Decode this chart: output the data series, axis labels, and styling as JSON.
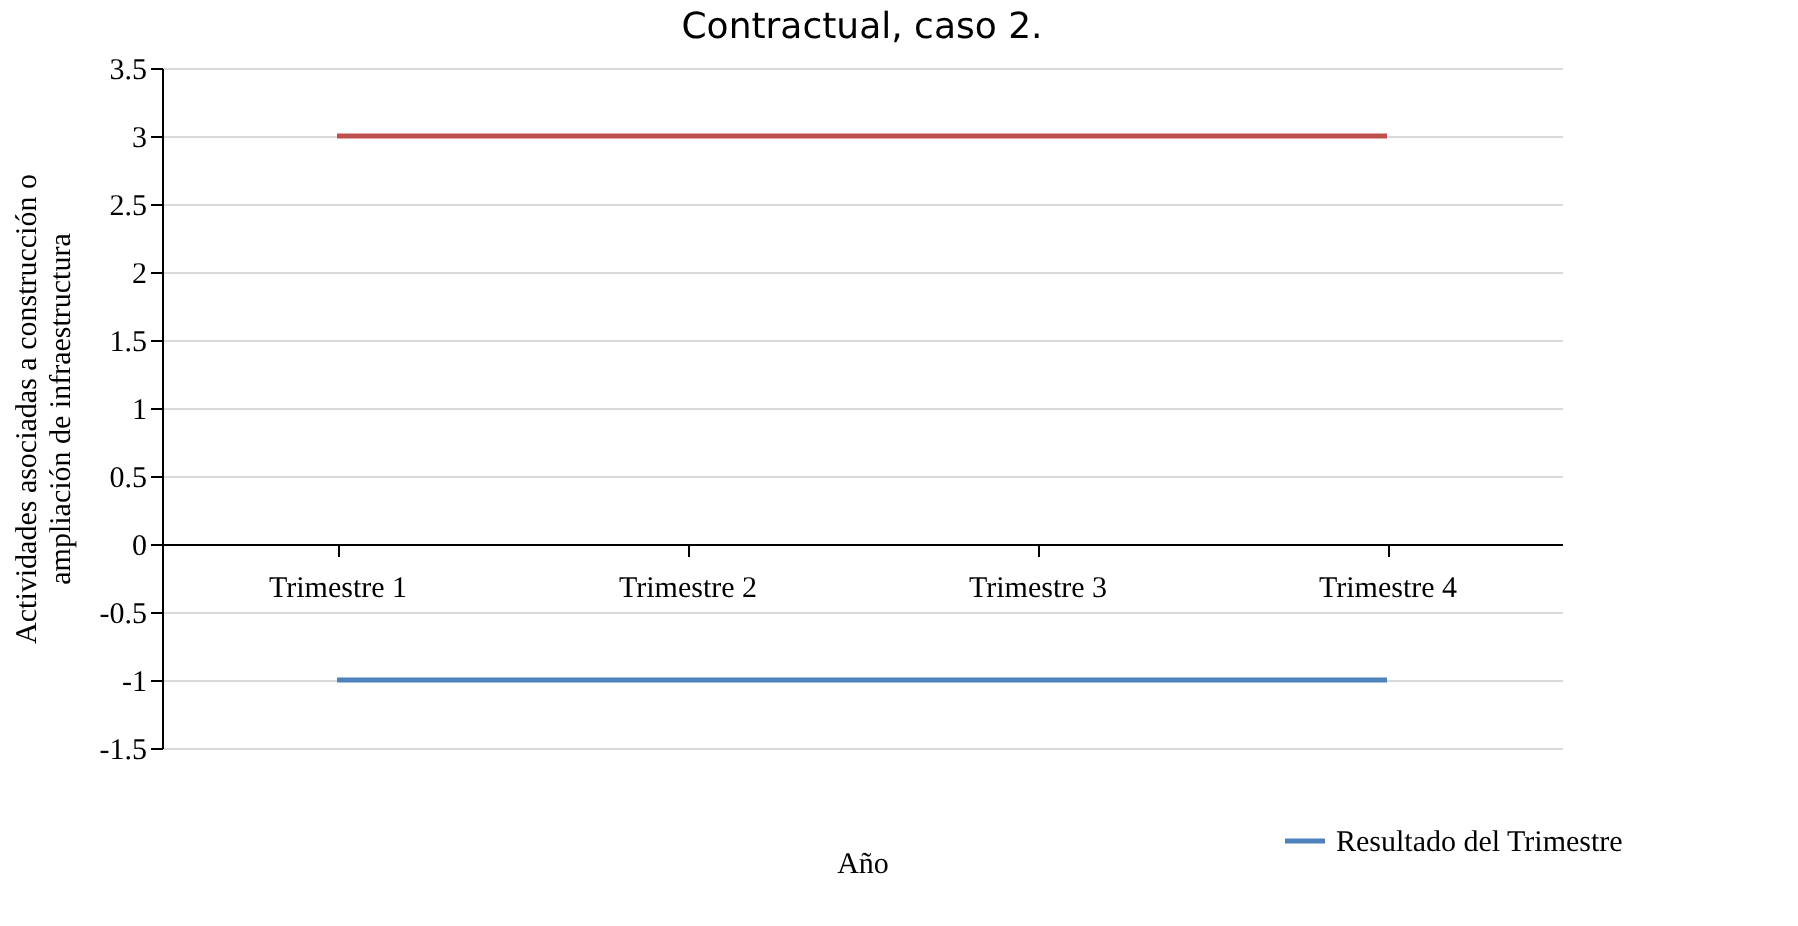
{
  "chart_data": {
    "type": "line",
    "title": "Contractual, caso 2.",
    "xlabel": "Año",
    "ylabel": "Actividades asociadas a construcción o ampliación de infraestructura",
    "categories": [
      "Trimestre 1",
      "Trimestre 2",
      "Trimestre 3",
      "Trimestre 4"
    ],
    "series": [
      {
        "color": "#c0504d",
        "values": [
          3,
          3,
          3,
          3
        ]
      },
      {
        "name": "Resultado del Trimestre",
        "color": "#4f81bd",
        "values": [
          -1,
          -1,
          -1,
          -1
        ]
      }
    ],
    "ylim": [
      -1.5,
      3.5
    ],
    "yticks": [
      -1.5,
      -1,
      -0.5,
      0,
      0.5,
      1,
      1.5,
      2,
      2.5,
      3,
      3.5
    ],
    "grid": "y",
    "legend": "bottom right",
    "marker": "none",
    "line_style": "solid"
  }
}
